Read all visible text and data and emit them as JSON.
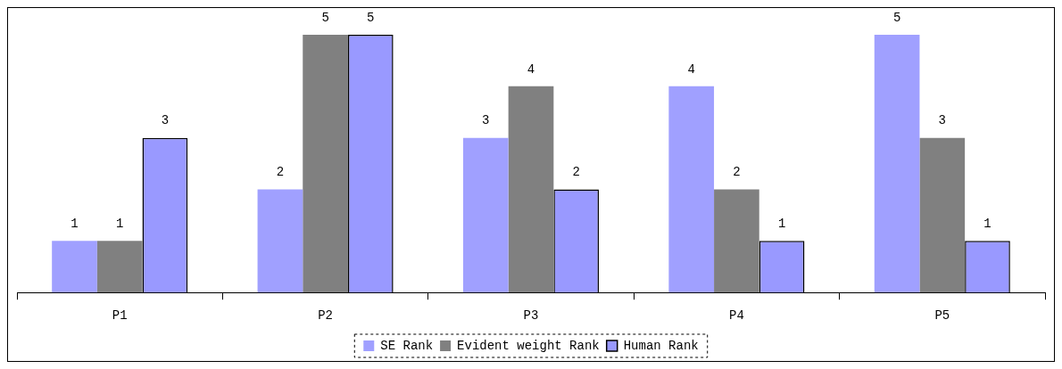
{
  "chart_data": {
    "type": "bar",
    "categories": [
      "P1",
      "P2",
      "P3",
      "P4",
      "P5"
    ],
    "series": [
      {
        "name": "SE Rank",
        "color": "#a0a0ff",
        "values": [
          1,
          2,
          3,
          4,
          5
        ]
      },
      {
        "name": "Evident weight Rank",
        "color": "#808080",
        "values": [
          1,
          5,
          4,
          2,
          3
        ]
      },
      {
        "name": "Human Rank",
        "color": "#9999ff",
        "values": [
          3,
          5,
          2,
          1,
          1
        ]
      }
    ],
    "data_labels": true,
    "legend": "bottom",
    "grid": false
  }
}
